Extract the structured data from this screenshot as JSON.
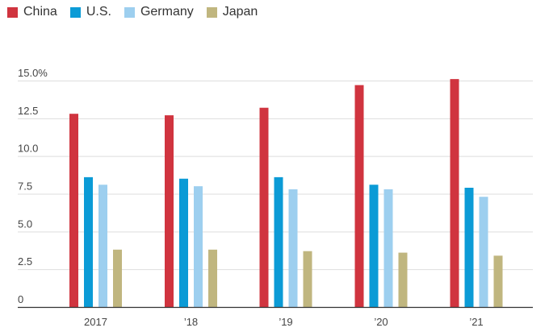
{
  "chart_data": {
    "type": "bar",
    "categories": [
      "2017",
      "’18",
      "’19",
      "’20",
      "’21"
    ],
    "series": [
      {
        "name": "China",
        "color": "#d0343f",
        "values": [
          12.8,
          12.7,
          13.2,
          14.7,
          15.1
        ]
      },
      {
        "name": "U.S.",
        "color": "#0b9bd6",
        "values": [
          8.6,
          8.5,
          8.6,
          8.1,
          7.9
        ]
      },
      {
        "name": "Germany",
        "color": "#9dcfef",
        "values": [
          8.1,
          8.0,
          7.8,
          7.8,
          7.3
        ]
      },
      {
        "name": "Japan",
        "color": "#c0b67f",
        "values": [
          3.8,
          3.8,
          3.7,
          3.6,
          3.4
        ]
      }
    ],
    "ylim": [
      0,
      15
    ],
    "yticks": [
      {
        "value": 0,
        "label": "0"
      },
      {
        "value": 2.5,
        "label": "2.5"
      },
      {
        "value": 5.0,
        "label": "5.0"
      },
      {
        "value": 7.5,
        "label": "7.5"
      },
      {
        "value": 10.0,
        "label": "10.0"
      },
      {
        "value": 12.5,
        "label": "12.5"
      },
      {
        "value": 15.0,
        "label": "15.0%"
      }
    ],
    "grid": true,
    "legend_position": "top-left"
  }
}
